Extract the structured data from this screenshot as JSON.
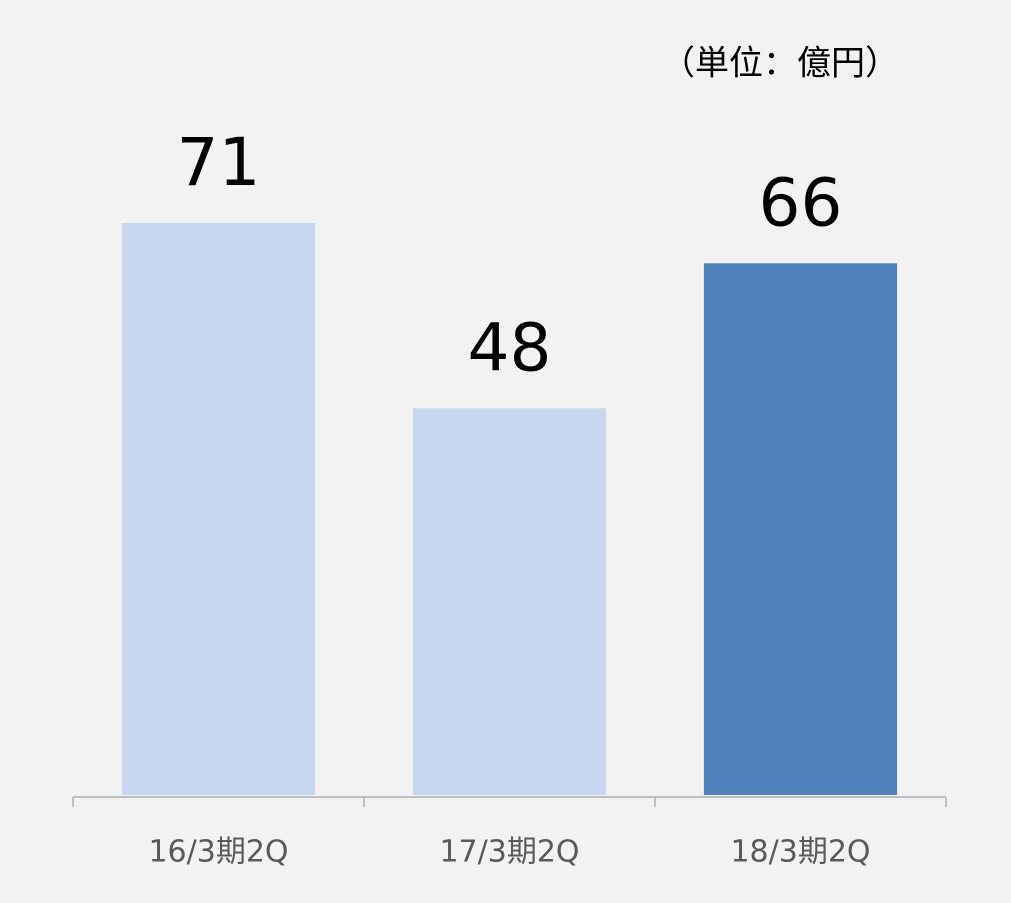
{
  "chart_data": {
    "type": "bar",
    "unit_label": "（単位：億円）",
    "categories": [
      "16/3期2Q",
      "17/3期2Q",
      "18/3期2Q"
    ],
    "values": [
      71,
      48,
      66
    ],
    "colors": [
      "#c6d8f0",
      "#c6d8f0",
      "#4f81bd"
    ],
    "ylim": [
      0,
      80
    ]
  }
}
